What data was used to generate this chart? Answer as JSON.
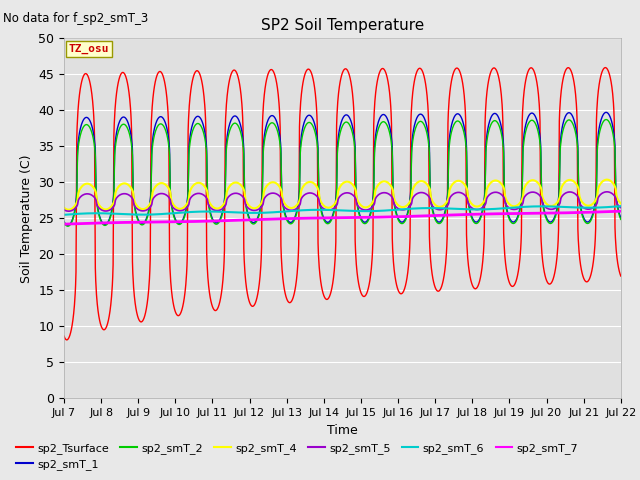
{
  "title": "SP2 Soil Temperature",
  "no_data_text": "No data for f_sp2_smT_3",
  "tz_label": "TZ_osu",
  "ylabel": "Soil Temperature (C)",
  "xlabel": "Time",
  "ylim": [
    0,
    50
  ],
  "yticks": [
    0,
    5,
    10,
    15,
    20,
    25,
    30,
    35,
    40,
    45,
    50
  ],
  "xtick_labels": [
    "Jul 7",
    "Jul 8",
    "Jul 9",
    "Jul 10",
    "Jul 11",
    "Jul 12",
    "Jul 13",
    "Jul 14",
    "Jul 15",
    "Jul 16",
    "Jul 17",
    "Jul 18",
    "Jul 19",
    "Jul 20",
    "Jul 21",
    "Jul 22"
  ],
  "bg_color": "#e8e8e8",
  "plot_bg_color": "#e8e8e8",
  "series": {
    "sp2_Tsurface": {
      "color": "#ff0000",
      "lw": 1.0
    },
    "sp2_smT_1": {
      "color": "#0000cc",
      "lw": 1.0
    },
    "sp2_smT_2": {
      "color": "#00cc00",
      "lw": 1.0
    },
    "sp2_smT_4": {
      "color": "#ffff00",
      "lw": 1.5
    },
    "sp2_smT_5": {
      "color": "#9900cc",
      "lw": 1.2
    },
    "sp2_smT_6": {
      "color": "#00cccc",
      "lw": 1.5
    },
    "sp2_smT_7": {
      "color": "#ff00ff",
      "lw": 2.0
    }
  }
}
